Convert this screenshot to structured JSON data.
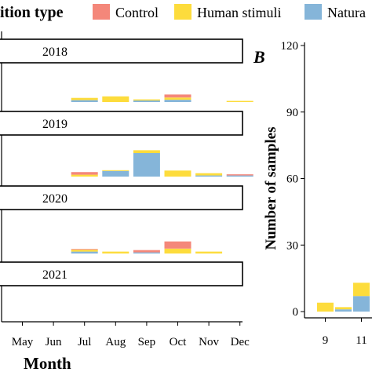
{
  "legend": {
    "title": "ition type",
    "items": [
      {
        "label": "Control",
        "color": "#f4877a"
      },
      {
        "label": "Human stimuli",
        "color": "#fddc3c"
      },
      {
        "label": "Natura",
        "color": "#85b5d9"
      }
    ]
  },
  "panel_b_label": "B",
  "chart_data": [
    {
      "type": "bar",
      "stacked": true,
      "facets": [
        "2018",
        "2019",
        "2020",
        "2021"
      ],
      "categories": [
        "May",
        "Jun",
        "Jul",
        "Aug",
        "Sep",
        "Oct",
        "Nov",
        "Dec"
      ],
      "series_order": [
        "Natura",
        "Human stimuli",
        "Control"
      ],
      "xlabel": "Month",
      "ylabel": "",
      "data": {
        "2018": {
          "Jul": {
            "Natura": 1,
            "Human stimuli": 1.2,
            "Control": 0
          },
          "Aug": {
            "Natura": 0,
            "Human stimuli": 3,
            "Control": 0
          },
          "Sep": {
            "Natura": 0.8,
            "Human stimuli": 0.6,
            "Control": 0
          },
          "Oct": {
            "Natura": 1.2,
            "Human stimuli": 1.2,
            "Control": 1.6
          },
          "Dec": {
            "Natura": 0,
            "Human stimuli": 0.6,
            "Control": 0
          }
        },
        "2019": {
          "Jul": {
            "Natura": 0,
            "Human stimuli": 1,
            "Control": 1.4
          },
          "Aug": {
            "Natura": 3,
            "Human stimuli": 0.4,
            "Control": 0
          },
          "Sep": {
            "Natura": 12.5,
            "Human stimuli": 1.5,
            "Control": 0
          },
          "Oct": {
            "Natura": 0,
            "Human stimuli": 3.2,
            "Control": 0
          },
          "Nov": {
            "Natura": 0.6,
            "Human stimuli": 1.2,
            "Control": 0
          },
          "Dec": {
            "Natura": 0.6,
            "Human stimuli": 0,
            "Control": 0.6
          }
        },
        "2020": {
          "Jul": {
            "Natura": 1,
            "Human stimuli": 1,
            "Control": 0.4
          },
          "Aug": {
            "Natura": 0,
            "Human stimuli": 1,
            "Control": 0
          },
          "Sep": {
            "Natura": 0.6,
            "Human stimuli": 0,
            "Control": 1.2
          },
          "Oct": {
            "Natura": 0,
            "Human stimuli": 2.6,
            "Control": 3.8
          },
          "Nov": {
            "Natura": 0,
            "Human stimuli": 1,
            "Control": 0
          }
        },
        "2021": {}
      }
    },
    {
      "type": "bar",
      "stacked": true,
      "categories": [
        9,
        10,
        11
      ],
      "x_ticks": [
        "9",
        "11"
      ],
      "yticks": [
        "0",
        "30",
        "60",
        "90",
        "120"
      ],
      "ylim": [
        0,
        120
      ],
      "ylabel": "Number of samples",
      "series_order": [
        "Natura",
        "Human stimuli",
        "Control"
      ],
      "data": {
        "9": {
          "Natura": 0,
          "Human stimuli": 4,
          "Control": 0
        },
        "10": {
          "Natura": 1,
          "Human stimuli": 1,
          "Control": 0
        },
        "11": {
          "Natura": 7,
          "Human stimuli": 6,
          "Control": 0
        }
      }
    }
  ]
}
